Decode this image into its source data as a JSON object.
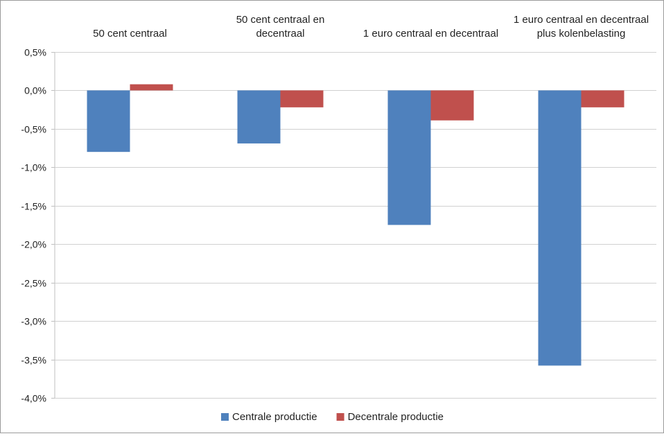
{
  "chart_data": {
    "type": "bar",
    "categories": [
      [
        "50 cent centraal"
      ],
      [
        "50 cent centraal en",
        "decentraal"
      ],
      [
        "1 euro centraal en decentraal"
      ],
      [
        "1 euro centraal en decentraal",
        "plus kolenbelasting"
      ]
    ],
    "category_label_position": "top",
    "series": [
      {
        "name": "Centrale productie",
        "color": "#4f81bd",
        "values": [
          -0.8,
          -0.69,
          -1.75,
          -3.58
        ]
      },
      {
        "name": "Decentrale productie",
        "color": "#c0504d",
        "values": [
          0.08,
          -0.22,
          -0.39,
          -0.22
        ]
      }
    ],
    "yticks": [
      "0,5%",
      "0,0%",
      "-0,5%",
      "-1,0%",
      "-1,5%",
      "-2,0%",
      "-2,5%",
      "-3,0%",
      "-3,5%",
      "-4,0%"
    ],
    "ytick_values": [
      0.5,
      0.0,
      -0.5,
      -1.0,
      -1.5,
      -2.0,
      -2.5,
      -3.0,
      -3.5,
      -4.0
    ],
    "ylim": [
      -4.0,
      0.5
    ],
    "grid": true,
    "legend": "bottom",
    "title": "",
    "xlabel": "",
    "ylabel": ""
  }
}
